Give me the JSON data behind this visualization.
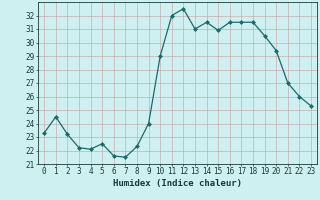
{
  "x": [
    0,
    1,
    2,
    3,
    4,
    5,
    6,
    7,
    8,
    9,
    10,
    11,
    12,
    13,
    14,
    15,
    16,
    17,
    18,
    19,
    20,
    21,
    22,
    23
  ],
  "y": [
    23.3,
    24.5,
    23.2,
    22.2,
    22.1,
    22.5,
    21.6,
    21.5,
    22.3,
    24.0,
    29.0,
    32.0,
    32.5,
    31.0,
    31.5,
    30.9,
    31.5,
    31.5,
    31.5,
    30.5,
    29.4,
    27.0,
    26.0,
    25.3
  ],
  "line_color": "#1a6b6b",
  "marker": "D",
  "marker_size": 2.0,
  "bg_color": "#cff0f0",
  "grid_color_major": "#c8a0a0",
  "grid_color_minor": "#d8c0c0",
  "xlabel": "Humidex (Indice chaleur)",
  "xlim": [
    -0.5,
    23.5
  ],
  "ylim": [
    21,
    33
  ],
  "yticks": [
    21,
    22,
    23,
    24,
    25,
    26,
    27,
    28,
    29,
    30,
    31,
    32
  ],
  "xticks": [
    0,
    1,
    2,
    3,
    4,
    5,
    6,
    7,
    8,
    9,
    10,
    11,
    12,
    13,
    14,
    15,
    16,
    17,
    18,
    19,
    20,
    21,
    22,
    23
  ],
  "tick_color": "#1a3a3a",
  "label_fontsize": 6.5,
  "tick_fontsize": 5.5,
  "linewidth": 0.9
}
